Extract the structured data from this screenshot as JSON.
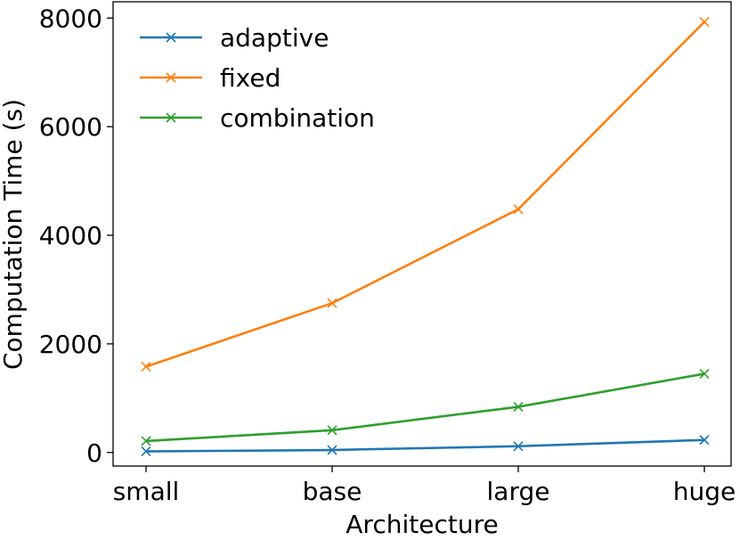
{
  "chart_data": {
    "type": "line",
    "xlabel": "Architecture",
    "ylabel": "Computation Time (s)",
    "categories": [
      "small",
      "base",
      "large",
      "huge"
    ],
    "ylim": [
      -250,
      8300
    ],
    "yticks": [
      0,
      2000,
      4000,
      6000,
      8000
    ],
    "grid": false,
    "legend_position": "top-left",
    "series": [
      {
        "name": "adaptive",
        "color": "#1f77b4",
        "marker": "x",
        "values": [
          20,
          45,
          115,
          230
        ]
      },
      {
        "name": "fixed",
        "color": "#ff7f0e",
        "marker": "x",
        "values": [
          1580,
          2750,
          4480,
          7930
        ]
      },
      {
        "name": "combination",
        "color": "#2ca02c",
        "marker": "x",
        "values": [
          210,
          410,
          840,
          1450
        ]
      }
    ]
  }
}
